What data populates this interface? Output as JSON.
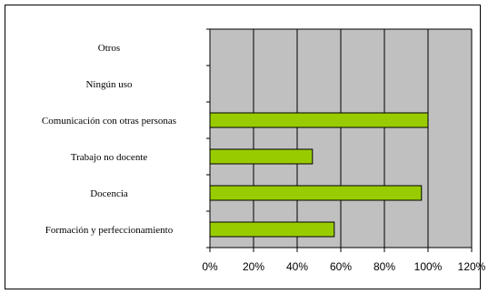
{
  "chart_data": {
    "type": "bar",
    "orientation": "horizontal",
    "categories": [
      "Otros",
      "Ningún uso",
      "Comunicación con otras personas",
      "Trabajo no docente",
      "Docencia",
      "Formación y perfeccionamiento"
    ],
    "values": [
      0,
      0,
      100,
      47,
      97,
      57
    ],
    "x_ticks": [
      "0%",
      "20%",
      "40%",
      "60%",
      "80%",
      "100%",
      "120%"
    ],
    "xlim": [
      0,
      120
    ],
    "grid": true,
    "legend": "none",
    "colors": {
      "bar_fill": "#99cc00",
      "bar_stroke": "#000000",
      "plot_bg": "#c0c0c0",
      "grid": "#000000"
    }
  }
}
